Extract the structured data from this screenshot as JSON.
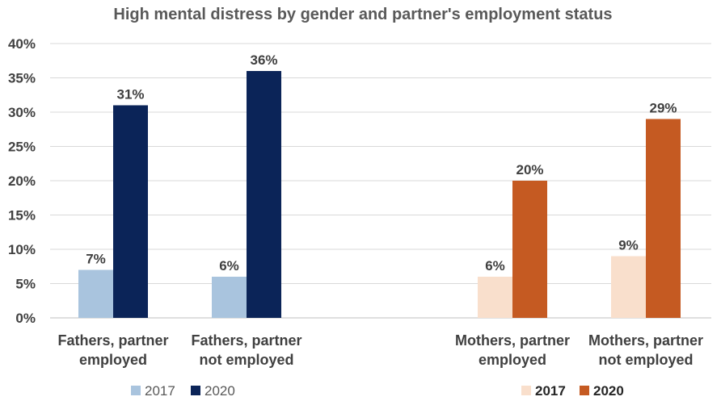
{
  "chart_data": {
    "type": "bar",
    "title": "High mental distress by gender and partner's employment status",
    "ylim": [
      0,
      0.4
    ],
    "yticks": [
      "0%",
      "5%",
      "10%",
      "15%",
      "20%",
      "25%",
      "30%",
      "35%",
      "40%"
    ],
    "grid": true,
    "groups": [
      {
        "categories": [
          "Fathers, partner employed",
          "Fathers, partner not employed"
        ],
        "series": [
          {
            "name": "2017",
            "color": "#a9c4de",
            "values": [
              0.07,
              0.06
            ],
            "labels": [
              "7%",
              "6%"
            ]
          },
          {
            "name": "2020",
            "color": "#0b2458",
            "values": [
              0.31,
              0.36
            ],
            "labels": [
              "31%",
              "36%"
            ]
          }
        ]
      },
      {
        "categories": [
          "Mothers, partner employed",
          "Mothers, partner not employed"
        ],
        "series": [
          {
            "name": "2017",
            "color": "#f9dfcc",
            "values": [
              0.06,
              0.09
            ],
            "labels": [
              "6%",
              "9%"
            ]
          },
          {
            "name": "2020",
            "color": "#c55a22",
            "values": [
              0.2,
              0.29
            ],
            "labels": [
              "20%",
              "29%"
            ]
          }
        ]
      }
    ],
    "legends": [
      "bottom-left",
      "bottom-right"
    ]
  }
}
